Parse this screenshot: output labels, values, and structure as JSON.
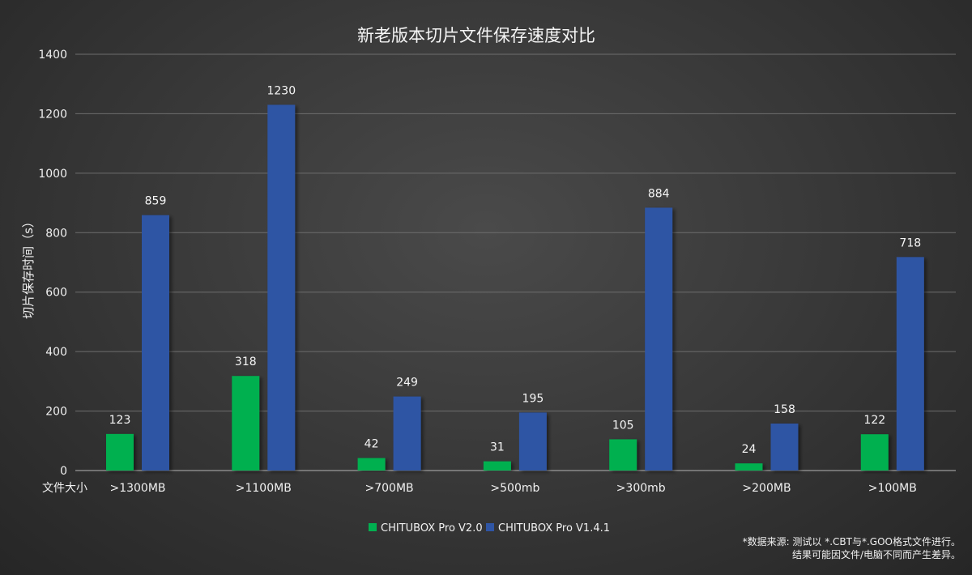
{
  "chart_data": {
    "type": "bar",
    "title": "新老版本切片文件保存速度对比",
    "xlabel": "文件大小",
    "ylabel": "切片保存时间（s）",
    "ylim": [
      0,
      1400
    ],
    "yticks": [
      0,
      200,
      400,
      600,
      800,
      1000,
      1200,
      1400
    ],
    "grid": true,
    "legend_position": "bottom",
    "categories": [
      ">1300MB",
      ">1100MB",
      ">700MB",
      ">500mb",
      ">300mb",
      ">200MB",
      ">100MB"
    ],
    "series": [
      {
        "name": "CHITUBOX Pro V2.0",
        "color": "#00b050",
        "values": [
          123,
          318,
          42,
          31,
          105,
          24,
          122
        ]
      },
      {
        "name": "CHITUBOX Pro V1.4.1",
        "color": "#2f55a4",
        "values": [
          859,
          1230,
          249,
          195,
          884,
          158,
          718
        ]
      }
    ],
    "footnote": [
      "*数据来源: 测试以 *.CBT与*.GOO格式文件进行。",
      "结果可能因文件/电脑不同而产生差异。"
    ]
  }
}
